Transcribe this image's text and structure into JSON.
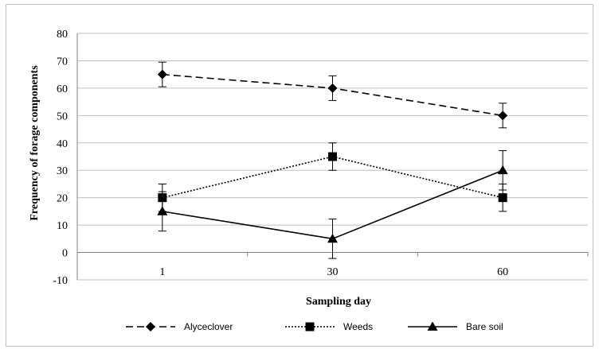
{
  "chart_data": {
    "type": "line",
    "categories": [
      "1",
      "30",
      "60"
    ],
    "series": [
      {
        "name": "Alyceclover",
        "values": [
          65,
          60,
          50
        ],
        "error": [
          4.5,
          4.5,
          4.5
        ],
        "line_style": "dashed",
        "marker": "diamond"
      },
      {
        "name": "Weeds",
        "values": [
          20,
          35,
          20
        ],
        "error": [
          5,
          5,
          5
        ],
        "line_style": "dotted",
        "marker": "square"
      },
      {
        "name": "Bare soil",
        "values": [
          15,
          5,
          30
        ],
        "error": [
          7.2,
          7.2,
          7.2
        ],
        "line_style": "solid",
        "marker": "triangle"
      }
    ],
    "xlabel": "Sampling day",
    "ylabel": "Frequency of forage components",
    "ylim": [
      -10,
      80
    ],
    "yticks": [
      "-10",
      "0",
      "10",
      "20",
      "30",
      "40",
      "50",
      "60",
      "70",
      "80"
    ],
    "grid": "horizontal",
    "legend_position": "bottom",
    "color": "#000000",
    "grid_color": "#bfbfbf"
  }
}
